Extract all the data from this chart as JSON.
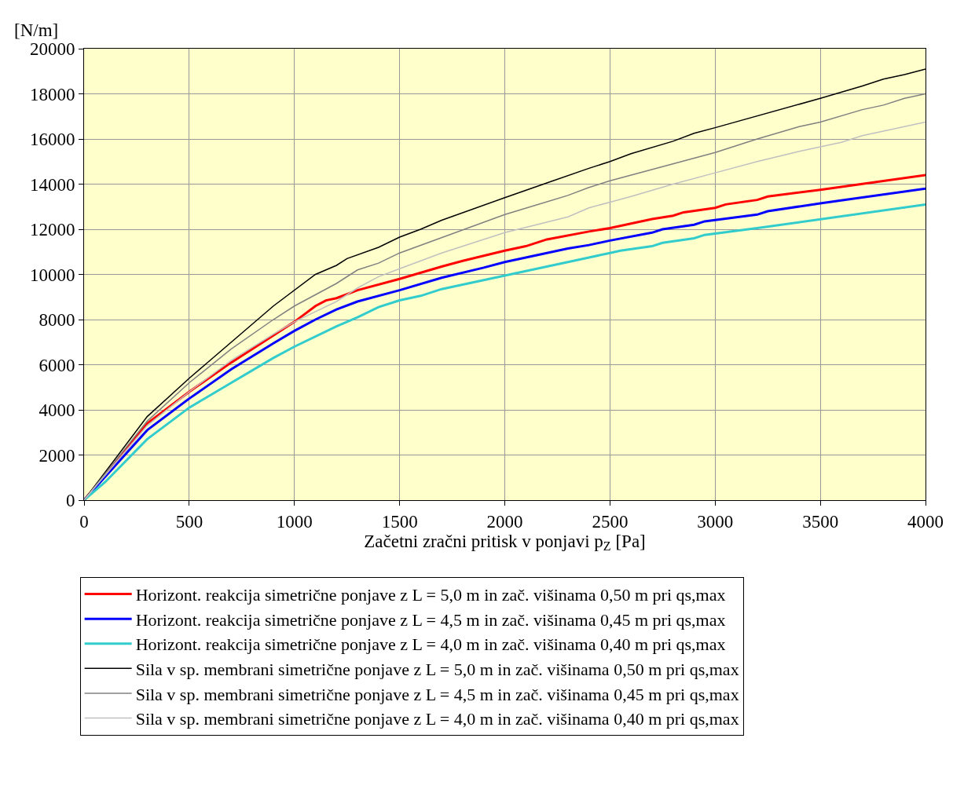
{
  "chart_data": {
    "type": "line",
    "ylabel": "[N/m]",
    "xlabel": "Začetni zračni pritisk v ponjavi p$_{Z}$ [Pa]",
    "xlim": [
      0,
      4000
    ],
    "xticks": [
      0,
      500,
      1000,
      1500,
      2000,
      2500,
      3000,
      3500,
      4000
    ],
    "ylim": [
      0,
      20000
    ],
    "yticks": [
      0,
      2000,
      4000,
      6000,
      8000,
      10000,
      12000,
      14000,
      16000,
      18000,
      20000
    ],
    "grid": true,
    "legend": "bottom",
    "marker": "none",
    "line_style": "solid",
    "series": [
      {
        "name": "Horizont. reakcija simetrične ponjave z L = 5,0 m in zač. višinama 0,50 m pri qs,max",
        "color": "#ff0000",
        "x": [
          0,
          300,
          500,
          700,
          900,
          1000,
          1100,
          1150,
          1200,
          1300,
          1500,
          1700,
          1800,
          2000,
          2100,
          2200,
          2400,
          2500,
          2700,
          2800,
          2850,
          3000,
          3050,
          3200,
          3250,
          3500,
          4000
        ],
        "values": [
          0,
          3400,
          4800,
          6100,
          7300,
          7900,
          8600,
          8850,
          8950,
          9300,
          9800,
          10350,
          10600,
          11050,
          11250,
          11550,
          11900,
          12050,
          12450,
          12600,
          12750,
          12950,
          13100,
          13300,
          13450,
          13750,
          14400
        ]
      },
      {
        "name": "Horizont. reakcija simetrične ponjave z L = 4,5 m in zač. višinama 0,45 m pri qs,max",
        "color": "#0000ff",
        "x": [
          0,
          300,
          500,
          700,
          900,
          1000,
          1100,
          1200,
          1300,
          1500,
          1700,
          1900,
          2000,
          2300,
          2400,
          2500,
          2700,
          2750,
          2900,
          2950,
          3200,
          3250,
          3500,
          4000
        ],
        "values": [
          0,
          3100,
          4500,
          5800,
          6950,
          7500,
          8000,
          8450,
          8800,
          9300,
          9850,
          10300,
          10550,
          11150,
          11300,
          11500,
          11850,
          12000,
          12200,
          12350,
          12650,
          12800,
          13150,
          13800
        ]
      },
      {
        "name": "Horizont. reakcija simetrične ponjave z L = 4,0 m in zač. višinama 0,40 m pri qs,max",
        "color": "#33cccc",
        "x": [
          0,
          100,
          300,
          500,
          700,
          900,
          1000,
          1200,
          1300,
          1400,
          1500,
          1600,
          1700,
          2000,
          2400,
          2500,
          2550,
          2700,
          2750,
          2900,
          2950,
          3200,
          4000
        ],
        "values": [
          0,
          800,
          2700,
          4100,
          5200,
          6300,
          6800,
          7700,
          8100,
          8550,
          8850,
          9050,
          9350,
          9950,
          10750,
          10950,
          11050,
          11250,
          11400,
          11600,
          11750,
          12050,
          13100
        ]
      },
      {
        "name": "Sila v sp. membrani simetrične ponjave z L = 5,0 m in zač. višinama 0,50 m pri qs,max",
        "color": "#000000",
        "x": [
          0,
          300,
          500,
          600,
          700,
          900,
          1100,
          1200,
          1250,
          1400,
          1500,
          1600,
          1700,
          2000,
          2200,
          2400,
          2500,
          2600,
          2800,
          2900,
          3000,
          3500,
          3700,
          3800,
          3900,
          4000
        ],
        "values": [
          0,
          3700,
          5400,
          6200,
          7000,
          8600,
          10000,
          10400,
          10700,
          11200,
          11650,
          12000,
          12400,
          13400,
          14050,
          14700,
          15000,
          15350,
          15900,
          16250,
          16500,
          17800,
          18350,
          18650,
          18850,
          19100
        ]
      },
      {
        "name": "Sila v sp. membrani simetrične ponjave z L = 4,5 m in zač. višinama 0,45 m pri qs,max",
        "color": "#808080",
        "x": [
          0,
          300,
          500,
          700,
          900,
          1000,
          1200,
          1300,
          1400,
          1500,
          2000,
          2300,
          2400,
          2500,
          3000,
          3200,
          3400,
          3500,
          3700,
          3800,
          3900,
          4000
        ],
        "values": [
          0,
          3500,
          5200,
          6700,
          8000,
          8600,
          9600,
          10200,
          10500,
          10950,
          12650,
          13500,
          13850,
          14150,
          15400,
          16000,
          16550,
          16750,
          17300,
          17500,
          17800,
          18000
        ]
      },
      {
        "name": "Sila v sp. membrani simetrične ponjave z L = 4,0 m in zač. višinama 0,40 m pri qs,max",
        "color": "#c0c0c0",
        "x": [
          0,
          300,
          500,
          700,
          900,
          1000,
          1200,
          1300,
          1400,
          1500,
          1700,
          2000,
          2300,
          2400,
          2600,
          2800,
          3000,
          3200,
          3400,
          3600,
          3700,
          4000
        ],
        "values": [
          0,
          3300,
          4800,
          6200,
          7350,
          7900,
          8800,
          9400,
          9900,
          10250,
          10950,
          11850,
          12550,
          12950,
          13450,
          14000,
          14500,
          15000,
          15450,
          15850,
          16150,
          16750
        ]
      }
    ]
  }
}
